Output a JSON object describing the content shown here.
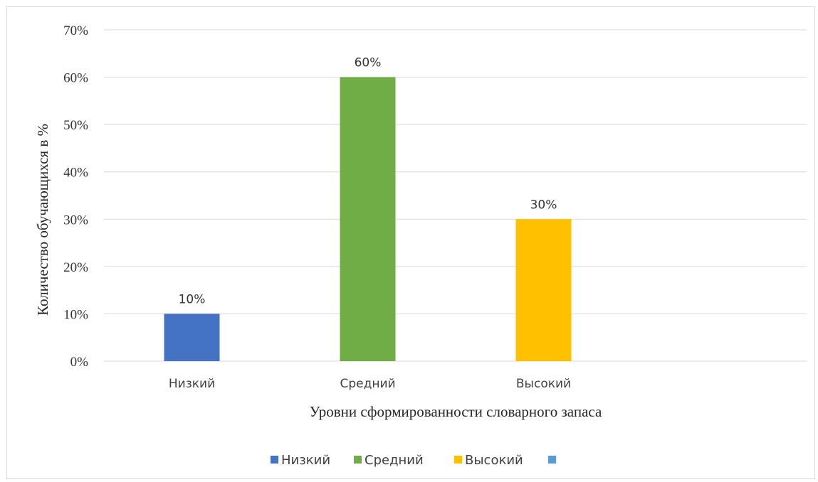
{
  "chart_data": {
    "type": "bar",
    "title": "",
    "categories": [
      "Низкий",
      "Средний",
      "Высокий"
    ],
    "values": [
      10,
      60,
      30
    ],
    "data_labels": [
      "10%",
      "60%",
      "30%"
    ],
    "colors": [
      "#4472C4",
      "#70AD47",
      "#FFC000"
    ],
    "xlabel": "Уровни сформированности словарного запаса",
    "ylabel": "Количество обучающихся в %",
    "ylim": [
      0,
      70
    ],
    "y_ticks": [
      "0%",
      "10%",
      "20%",
      "30%",
      "40%",
      "50%",
      "60%",
      "70%"
    ],
    "grid": true,
    "legend_position": "bottom",
    "legend": [
      {
        "label": "Низкий",
        "color": "#4472C4"
      },
      {
        "label": "Средний",
        "color": "#70AD47"
      },
      {
        "label": "Высокий",
        "color": "#FFC000"
      },
      {
        "label": "",
        "color": "#5B9BD5"
      }
    ]
  }
}
